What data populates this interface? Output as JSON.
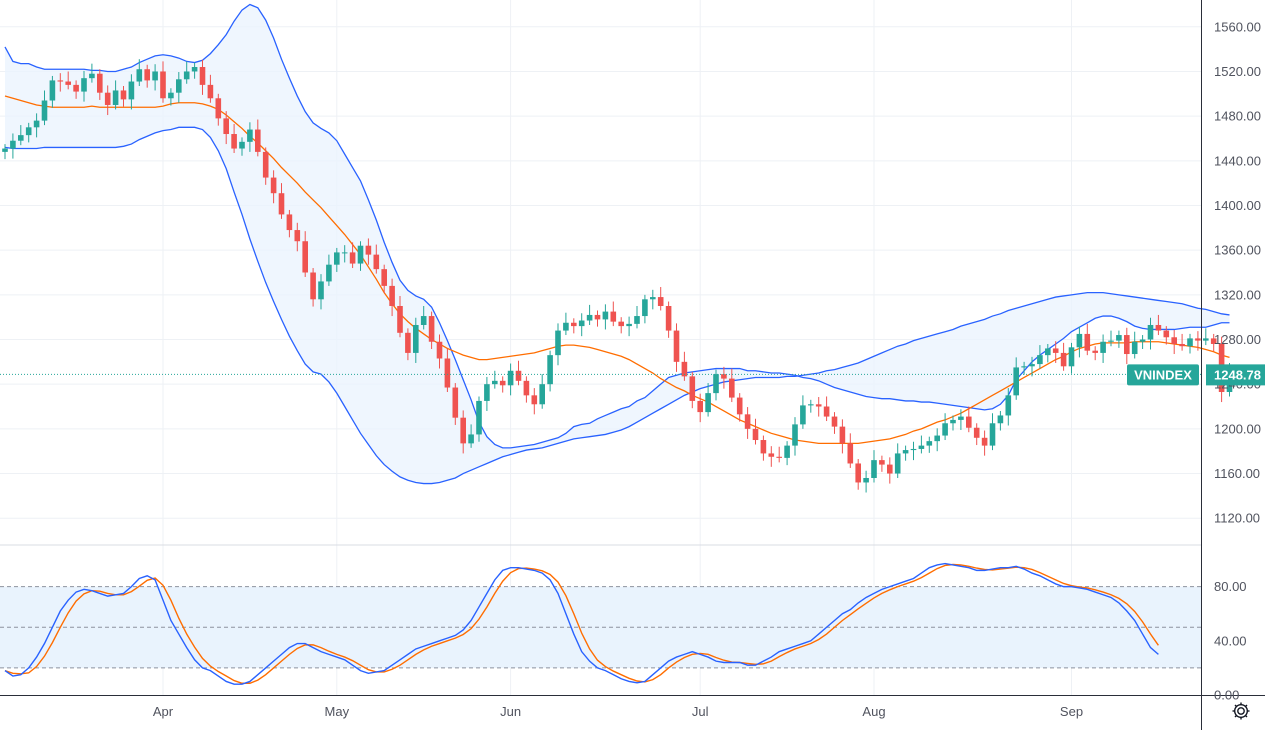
{
  "chart_data": {
    "type": "candlestick",
    "symbol": "VNINDEX",
    "last_value": "1248.78",
    "x_tick_labels": [
      {
        "label": "Apr",
        "index": 20
      },
      {
        "label": "May",
        "index": 42
      },
      {
        "label": "Jun",
        "index": 64
      },
      {
        "label": "Jul",
        "index": 88
      },
      {
        "label": "Aug",
        "index": 110
      },
      {
        "label": "Sep",
        "index": 135
      }
    ],
    "price_axis": {
      "ylim": [
        1096,
        1584
      ],
      "ticks": [
        "1560.00",
        "1520.00",
        "1480.00",
        "1440.00",
        "1400.00",
        "1360.00",
        "1320.00",
        "1280.00",
        "1240.00",
        "1200.00",
        "1160.00",
        "1120.00"
      ]
    },
    "oscillator_axis": {
      "ylim": [
        0,
        110
      ],
      "ticks": [
        "80.00",
        "40.00",
        "0.00"
      ],
      "upper_band": 80,
      "middle_band": 50,
      "lower_band": 20
    },
    "close": [
      1451,
      1458,
      1463,
      1470,
      1476,
      1494,
      1512,
      1511,
      1508,
      1502,
      1514,
      1518,
      1501,
      1490,
      1503,
      1495,
      1511,
      1522,
      1512,
      1520,
      1496,
      1501,
      1513,
      1520,
      1524,
      1508,
      1496,
      1478,
      1464,
      1451,
      1457,
      1468,
      1448,
      1425,
      1411,
      1392,
      1378,
      1368,
      1340,
      1316,
      1332,
      1347,
      1358,
      1358,
      1348,
      1364,
      1356,
      1343,
      1328,
      1310,
      1286,
      1268,
      1293,
      1301,
      1278,
      1263,
      1237,
      1210,
      1187,
      1195,
      1225,
      1240,
      1243,
      1239,
      1252,
      1243,
      1230,
      1222,
      1240,
      1266,
      1288,
      1295,
      1292,
      1297,
      1302,
      1298,
      1305,
      1296,
      1292,
      1294,
      1301,
      1316,
      1318,
      1310,
      1288,
      1260,
      1247,
      1225,
      1215,
      1232,
      1249,
      1245,
      1228,
      1213,
      1200,
      1190,
      1178,
      1175,
      1174,
      1185,
      1204,
      1221,
      1222,
      1220,
      1211,
      1202,
      1187,
      1169,
      1152,
      1156,
      1172,
      1168,
      1160,
      1178,
      1181,
      1182,
      1185,
      1189,
      1194,
      1205,
      1208,
      1211,
      1201,
      1192,
      1185,
      1205,
      1212,
      1230,
      1255,
      1256,
      1258,
      1266,
      1272,
      1268,
      1256,
      1273,
      1285,
      1270,
      1268,
      1278,
      1279,
      1284,
      1267,
      1278,
      1280,
      1293,
      1288,
      1282,
      1276,
      1274,
      1281,
      1279,
      1281,
      1276,
      1233,
      1250
    ],
    "upper_band": [
      1542,
      1529,
      1527,
      1527,
      1524,
      1522,
      1522,
      1522,
      1522,
      1522,
      1522,
      1521,
      1521,
      1520,
      1520,
      1522,
      1524,
      1528,
      1531,
      1534,
      1535,
      1534,
      1532,
      1529,
      1528,
      1530,
      1536,
      1544,
      1553,
      1565,
      1575,
      1580,
      1577,
      1566,
      1550,
      1531,
      1514,
      1498,
      1484,
      1474,
      1469,
      1465,
      1458,
      1446,
      1434,
      1422,
      1405,
      1387,
      1367,
      1349,
      1333,
      1324,
      1319,
      1316,
      1309,
      1295,
      1279,
      1262,
      1244,
      1226,
      1206,
      1193,
      1186,
      1183,
      1183,
      1184,
      1185,
      1186,
      1188,
      1190,
      1192,
      1196,
      1202,
      1204,
      1205,
      1209,
      1212,
      1215,
      1218,
      1220,
      1225,
      1228,
      1234,
      1240,
      1246,
      1248,
      1250,
      1251,
      1252,
      1253,
      1254,
      1254,
      1254,
      1254,
      1252,
      1252,
      1251,
      1250,
      1250,
      1249,
      1248,
      1246,
      1245,
      1243,
      1240,
      1237,
      1235,
      1233,
      1231,
      1229,
      1228,
      1227,
      1227,
      1226,
      1225,
      1225,
      1224,
      1224,
      1223,
      1222,
      1221,
      1220,
      1219,
      1218,
      1217,
      1218,
      1222,
      1230,
      1244,
      1252,
      1260,
      1266,
      1271,
      1276,
      1281,
      1287,
      1291,
      1295,
      1299,
      1301,
      1301,
      1299,
      1296,
      1292,
      1290,
      1289,
      1289,
      1289,
      1289,
      1290,
      1291,
      1291,
      1291,
      1293,
      1295,
      1295
    ],
    "middle_band": [
      1498,
      1496,
      1494,
      1492,
      1490,
      1489,
      1488,
      1488,
      1488,
      1488,
      1488,
      1489,
      1488,
      1488,
      1488,
      1488,
      1488,
      1488,
      1488,
      1488,
      1489,
      1491,
      1492,
      1492,
      1492,
      1491,
      1489,
      1486,
      1481,
      1475,
      1469,
      1462,
      1456,
      1449,
      1442,
      1434,
      1427,
      1420,
      1412,
      1405,
      1398,
      1390,
      1382,
      1374,
      1365,
      1356,
      1345,
      1334,
      1322,
      1312,
      1303,
      1296,
      1290,
      1285,
      1280,
      1276,
      1272,
      1269,
      1266,
      1264,
      1262,
      1262,
      1263,
      1264,
      1265,
      1266,
      1267,
      1268,
      1270,
      1272,
      1274,
      1275,
      1275,
      1274,
      1273,
      1271,
      1269,
      1267,
      1265,
      1262,
      1258,
      1254,
      1250,
      1245,
      1241,
      1237,
      1234,
      1230,
      1227,
      1224,
      1220,
      1216,
      1212,
      1208,
      1205,
      1202,
      1199,
      1196,
      1194,
      1192,
      1190,
      1189,
      1188,
      1187,
      1187,
      1187,
      1187,
      1187,
      1187,
      1188,
      1189,
      1190,
      1191,
      1193,
      1195,
      1198,
      1200,
      1203,
      1206,
      1208,
      1211,
      1214,
      1218,
      1222,
      1226,
      1230,
      1234,
      1238,
      1242,
      1246,
      1250,
      1254,
      1258,
      1262,
      1265,
      1269,
      1272,
      1274,
      1276,
      1277,
      1277,
      1277,
      1277,
      1278,
      1278,
      1278,
      1278,
      1277,
      1276,
      1275,
      1274,
      1273,
      1271,
      1269,
      1266,
      1264
    ],
    "lower_band": [
      1452,
      1451,
      1451,
      1451,
      1451,
      1452,
      1452,
      1452,
      1452,
      1452,
      1452,
      1452,
      1452,
      1452,
      1452,
      1453,
      1455,
      1459,
      1462,
      1465,
      1467,
      1468,
      1470,
      1470,
      1470,
      1468,
      1461,
      1449,
      1433,
      1412,
      1392,
      1370,
      1350,
      1331,
      1314,
      1298,
      1283,
      1270,
      1258,
      1251,
      1249,
      1242,
      1232,
      1220,
      1208,
      1196,
      1186,
      1176,
      1168,
      1162,
      1157,
      1154,
      1152,
      1151,
      1151,
      1152,
      1154,
      1156,
      1160,
      1163,
      1166,
      1169,
      1172,
      1175,
      1177,
      1179,
      1181,
      1182,
      1183,
      1185,
      1187,
      1189,
      1191,
      1192,
      1193,
      1194,
      1195,
      1197,
      1199,
      1202,
      1206,
      1210,
      1214,
      1218,
      1222,
      1226,
      1230,
      1233,
      1236,
      1238,
      1240,
      1242,
      1243,
      1244,
      1245,
      1246,
      1246,
      1246,
      1246,
      1247,
      1247,
      1248,
      1249,
      1250,
      1252,
      1253,
      1255,
      1257,
      1259,
      1262,
      1265,
      1268,
      1271,
      1274,
      1276,
      1279,
      1281,
      1283,
      1285,
      1287,
      1289,
      1292,
      1294,
      1296,
      1298,
      1301,
      1303,
      1306,
      1308,
      1310,
      1312,
      1314,
      1316,
      1318,
      1319,
      1320,
      1321,
      1322,
      1322,
      1322,
      1321,
      1320,
      1319,
      1318,
      1317,
      1316,
      1315,
      1314,
      1313,
      1312,
      1310,
      1308,
      1307,
      1305,
      1303,
      1302
    ],
    "stoch_k": [
      18,
      14,
      15,
      20,
      28,
      38,
      50,
      62,
      70,
      76,
      78,
      77,
      75,
      73,
      74,
      75,
      80,
      86,
      88,
      85,
      70,
      55,
      45,
      35,
      26,
      20,
      18,
      14,
      10,
      8,
      8,
      10,
      15,
      20,
      25,
      30,
      35,
      38,
      38,
      35,
      32,
      30,
      28,
      26,
      22,
      18,
      16,
      17,
      18,
      22,
      26,
      30,
      34,
      36,
      38,
      40,
      42,
      44,
      48,
      55,
      65,
      75,
      85,
      92,
      94,
      94,
      93,
      92,
      90,
      85,
      75,
      60,
      45,
      32,
      25,
      20,
      18,
      15,
      12,
      10,
      9,
      10,
      15,
      20,
      25,
      28,
      30,
      32,
      30,
      28,
      25,
      24,
      24,
      24,
      22,
      22,
      25,
      28,
      32,
      34,
      36,
      38,
      40,
      45,
      50,
      55,
      60,
      63,
      68,
      72,
      75,
      78,
      80,
      82,
      84,
      86,
      90,
      94,
      96,
      97,
      96,
      95,
      94,
      92,
      92,
      93,
      94,
      94,
      95,
      93,
      90,
      88,
      85,
      82,
      80,
      80,
      79,
      78,
      76,
      74,
      72,
      68,
      62,
      55,
      45,
      35,
      30
    ]
  },
  "icons": {
    "settings": "gear-icon"
  },
  "colors": {
    "up": "#26a69a",
    "down": "#ef5350",
    "bands": "#2962ff",
    "basis": "#ff6d00",
    "band_fill": "#e9f3fd",
    "badge": "#26a69a"
  }
}
